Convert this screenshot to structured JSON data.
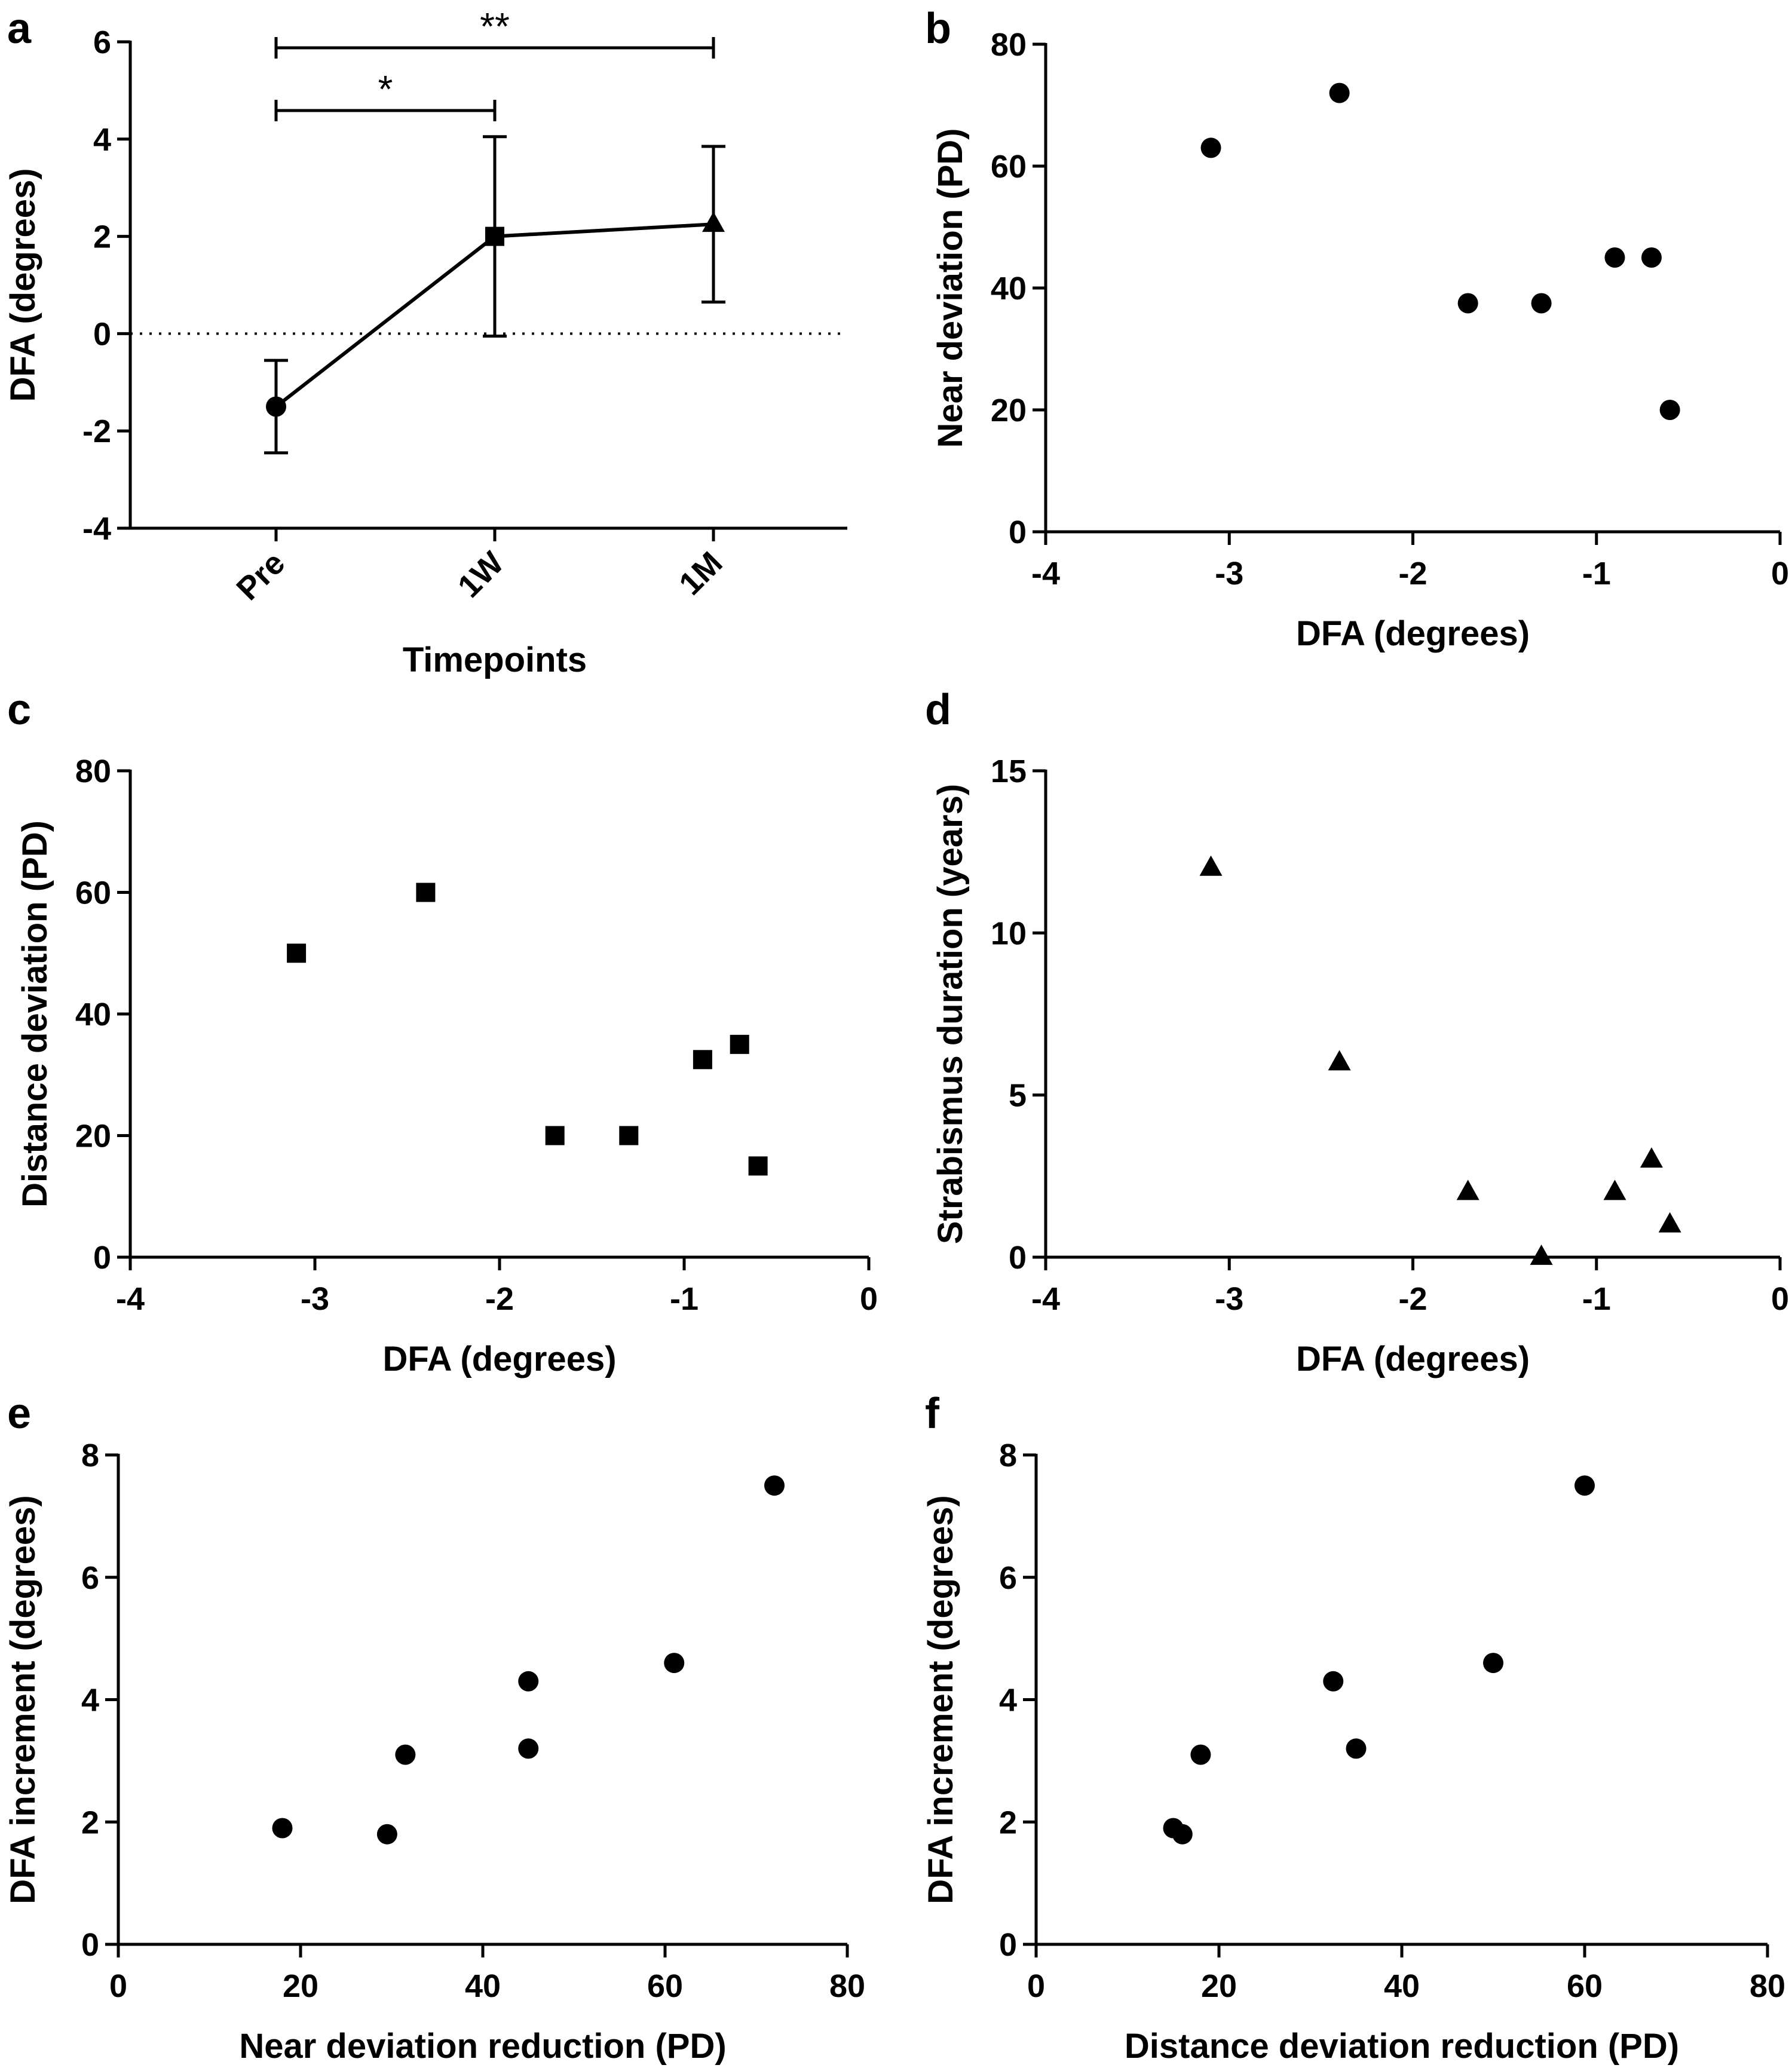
{
  "figure": {
    "panels": [
      "a",
      "b",
      "c",
      "d",
      "e",
      "f"
    ]
  },
  "chart_data": [
    {
      "id": "a",
      "panel_label": "a",
      "type": "line",
      "categories": [
        "Pre",
        "1W",
        "1M"
      ],
      "values": [
        -1.5,
        2.0,
        2.25
      ],
      "error": [
        0.95,
        2.05,
        1.6
      ],
      "markers": [
        "circle",
        "square",
        "triangle"
      ],
      "xlabel": "Timepoints",
      "ylabel": "DFA (degrees)",
      "ylim": [
        -4,
        6
      ],
      "yticks": [
        -4,
        -2,
        0,
        2,
        4,
        6
      ],
      "ytick_labels": [
        "-4",
        "-2",
        "0",
        "2",
        "4",
        "6"
      ],
      "reference_line": 0,
      "significance": [
        {
          "from": "Pre",
          "to": "1W",
          "label": "*"
        },
        {
          "from": "Pre",
          "to": "1M",
          "label": "**"
        }
      ],
      "grid": false
    },
    {
      "id": "b",
      "panel_label": "b",
      "type": "scatter",
      "marker": "circle",
      "x": [
        -3.1,
        -2.4,
        -1.7,
        -1.3,
        -0.9,
        -0.7,
        -0.6
      ],
      "y": [
        63,
        72,
        37.5,
        37.5,
        45,
        45,
        20
      ],
      "xlabel": "DFA (degrees)",
      "ylabel": "Near deviation (PD)",
      "xlim": [
        -4,
        0
      ],
      "ylim": [
        0,
        80
      ],
      "xticks": [
        -4,
        -3,
        -2,
        -1,
        0
      ],
      "xtick_labels": [
        "-4",
        "-3",
        "-2",
        "-1",
        "0"
      ],
      "yticks": [
        0,
        20,
        40,
        60,
        80
      ],
      "ytick_labels": [
        "0",
        "20",
        "40",
        "60",
        "80"
      ],
      "grid": false
    },
    {
      "id": "c",
      "panel_label": "c",
      "type": "scatter",
      "marker": "square",
      "x": [
        -3.1,
        -2.4,
        -1.7,
        -1.3,
        -0.9,
        -0.7,
        -0.6
      ],
      "y": [
        50,
        60,
        20,
        20,
        32.5,
        35,
        15
      ],
      "xlabel": "DFA (degrees)",
      "ylabel": "Distance deviation (PD)",
      "xlim": [
        -4,
        0
      ],
      "ylim": [
        0,
        80
      ],
      "xticks": [
        -4,
        -3,
        -2,
        -1,
        0
      ],
      "xtick_labels": [
        "-4",
        "-3",
        "-2",
        "-1",
        "0"
      ],
      "yticks": [
        0,
        20,
        40,
        60,
        80
      ],
      "ytick_labels": [
        "0",
        "20",
        "40",
        "60",
        "80"
      ],
      "grid": false
    },
    {
      "id": "d",
      "panel_label": "d",
      "type": "scatter",
      "marker": "triangle",
      "x": [
        -3.1,
        -2.4,
        -1.7,
        -1.3,
        -0.9,
        -0.7,
        -0.6
      ],
      "y": [
        12,
        6,
        2,
        0,
        2,
        3,
        1
      ],
      "xlabel": "DFA (degrees)",
      "ylabel": "Strabismus duration (years)",
      "xlim": [
        -4,
        0
      ],
      "ylim": [
        0,
        15
      ],
      "xticks": [
        -4,
        -3,
        -2,
        -1,
        0
      ],
      "xtick_labels": [
        "-4",
        "-3",
        "-2",
        "-1",
        "0"
      ],
      "yticks": [
        0,
        5,
        10,
        15
      ],
      "ytick_labels": [
        "0",
        "5",
        "10",
        "15"
      ],
      "grid": false
    },
    {
      "id": "e",
      "panel_label": "e",
      "type": "scatter",
      "marker": "circle",
      "x": [
        18,
        29.5,
        31.5,
        45,
        45,
        61,
        72
      ],
      "y": [
        1.9,
        1.8,
        3.1,
        4.3,
        3.2,
        4.6,
        7.5
      ],
      "xlabel": "Near deviation reduction (PD)",
      "ylabel": "DFA increment (degrees)",
      "xlim": [
        0,
        80
      ],
      "ylim": [
        0,
        8
      ],
      "xticks": [
        0,
        20,
        40,
        60,
        80
      ],
      "xtick_labels": [
        "0",
        "20",
        "40",
        "60",
        "80"
      ],
      "yticks": [
        0,
        2,
        4,
        6,
        8
      ],
      "ytick_labels": [
        "0",
        "2",
        "4",
        "6",
        "8"
      ],
      "grid": false
    },
    {
      "id": "f",
      "panel_label": "f",
      "type": "scatter",
      "marker": "circle",
      "x": [
        15,
        16,
        18,
        32.5,
        35,
        50,
        60
      ],
      "y": [
        1.9,
        1.8,
        3.1,
        4.3,
        3.2,
        4.6,
        7.5
      ],
      "xlabel": "Distance deviation reduction (PD)",
      "ylabel": "DFA increment (degrees)",
      "xlim": [
        0,
        80
      ],
      "ylim": [
        0,
        8
      ],
      "xticks": [
        0,
        20,
        40,
        60,
        80
      ],
      "xtick_labels": [
        "0",
        "20",
        "40",
        "60",
        "80"
      ],
      "yticks": [
        0,
        2,
        4,
        6,
        8
      ],
      "ytick_labels": [
        "0",
        "2",
        "4",
        "6",
        "8"
      ],
      "grid": false
    }
  ]
}
